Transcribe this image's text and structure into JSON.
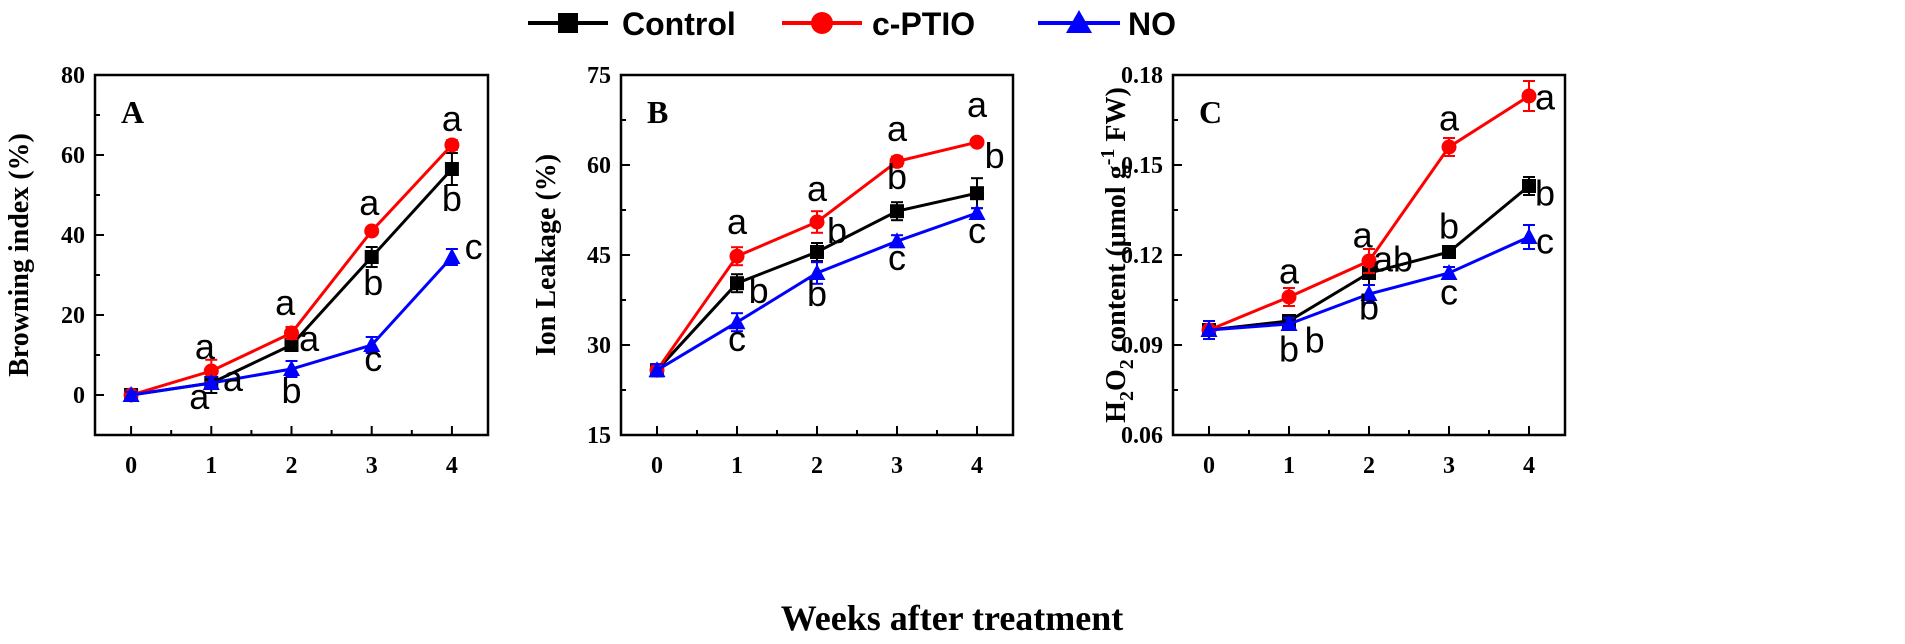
{
  "legend": {
    "control": "Control",
    "cptio": "c-PTIO",
    "no": "NO"
  },
  "x_axis_label": "Weeks after treatment",
  "colors": {
    "control": "#000000",
    "cptio": "#ff0000",
    "no": "#0000ff"
  },
  "chart_data": [
    {
      "type": "line",
      "panel": "A",
      "ylabel": "Browning index (%)",
      "x": [
        0,
        1,
        2,
        3,
        4
      ],
      "xticks": [
        "0",
        "1",
        "2",
        "3",
        "4"
      ],
      "xlim": [
        -0.45,
        4.45
      ],
      "ylim": [
        -10,
        80
      ],
      "yticks": [
        0,
        20,
        40,
        60,
        80
      ],
      "ytick_labels": [
        "0",
        "20",
        "40",
        "60",
        "80"
      ],
      "series": [
        {
          "name": "Control",
          "key": "control",
          "marker": "square",
          "values": [
            0,
            3,
            12.5,
            34.5,
            56.5
          ],
          "err": [
            0.8,
            2.5,
            1.0,
            2.5,
            4.0
          ]
        },
        {
          "name": "c-PTIO",
          "key": "cptio",
          "marker": "circle",
          "values": [
            0,
            6,
            15.5,
            41,
            62.5
          ],
          "err": [
            0.8,
            2.8,
            1.5,
            0.8,
            1.2
          ]
        },
        {
          "name": "NO",
          "key": "no",
          "marker": "triangle",
          "values": [
            0,
            3,
            6.5,
            12.5,
            34.5
          ],
          "err": [
            0.8,
            1.5,
            2.0,
            2.0,
            2.0
          ]
        }
      ],
      "annotations": [
        {
          "text": "a",
          "x": 0.92,
          "y": 9
        },
        {
          "text": "a",
          "x": 0.85,
          "y": -3.5
        },
        {
          "text": "a",
          "x": 1.27,
          "y": 1
        },
        {
          "text": "a",
          "x": 1.92,
          "y": 20
        },
        {
          "text": "a",
          "x": 2.22,
          "y": 11
        },
        {
          "text": "b",
          "x": 2.0,
          "y": -2
        },
        {
          "text": "a",
          "x": 2.97,
          "y": 45
        },
        {
          "text": "b",
          "x": 3.02,
          "y": 25
        },
        {
          "text": "c",
          "x": 3.02,
          "y": 6
        },
        {
          "text": "a",
          "x": 4.0,
          "y": 66
        },
        {
          "text": "b",
          "x": 4.0,
          "y": 46
        },
        {
          "text": "c",
          "x": 4.27,
          "y": 34
        }
      ],
      "legend_loc": "none"
    },
    {
      "type": "line",
      "panel": "B",
      "ylabel": "Ion Leakage (%)",
      "x": [
        0,
        1,
        2,
        3,
        4
      ],
      "xticks": [
        "0",
        "1",
        "2",
        "3",
        "4"
      ],
      "xlim": [
        -0.45,
        4.45
      ],
      "ylim": [
        15,
        75
      ],
      "yticks": [
        15,
        30,
        45,
        60,
        75
      ],
      "ytick_labels": [
        "15",
        "30",
        "45",
        "60",
        "75"
      ],
      "series": [
        {
          "name": "Control",
          "key": "control",
          "marker": "square",
          "values": [
            25.8,
            40.3,
            45.5,
            52.3,
            55.3
          ],
          "err": [
            1.0,
            1.5,
            1.5,
            1.5,
            2.5
          ]
        },
        {
          "name": "c-PTIO",
          "key": "cptio",
          "marker": "circle",
          "values": [
            25.8,
            44.8,
            50.5,
            60.6,
            63.8
          ],
          "err": [
            1.0,
            1.5,
            1.8,
            0.8,
            0.5
          ]
        },
        {
          "name": "NO",
          "key": "no",
          "marker": "triangle",
          "values": [
            25.8,
            33.8,
            42.0,
            47.3,
            52.0
          ],
          "err": [
            1.0,
            1.5,
            1.8,
            1.0,
            0.8
          ]
        }
      ],
      "annotations": [
        {
          "text": "a",
          "x": 1.0,
          "y": 48.5
        },
        {
          "text": "b",
          "x": 1.27,
          "y": 37
        },
        {
          "text": "c",
          "x": 1.0,
          "y": 29
        },
        {
          "text": "a",
          "x": 2.0,
          "y": 54
        },
        {
          "text": "b",
          "x": 2.25,
          "y": 47
        },
        {
          "text": "b",
          "x": 2.0,
          "y": 36.5
        },
        {
          "text": "a",
          "x": 3.0,
          "y": 64
        },
        {
          "text": "b",
          "x": 3.0,
          "y": 56
        },
        {
          "text": "c",
          "x": 3.0,
          "y": 42.5
        },
        {
          "text": "a",
          "x": 4.0,
          "y": 68
        },
        {
          "text": "b",
          "x": 4.22,
          "y": 59.5
        },
        {
          "text": "c",
          "x": 4.0,
          "y": 47
        }
      ],
      "legend_loc": "none"
    },
    {
      "type": "line",
      "panel": "C",
      "ylabel": "H2O2 content (μmol g-1 FW)",
      "x": [
        0,
        1,
        2,
        3,
        4
      ],
      "xticks": [
        "0",
        "1",
        "2",
        "3",
        "4"
      ],
      "xlim": [
        -0.45,
        4.45
      ],
      "ylim": [
        0.06,
        0.18
      ],
      "yticks": [
        0.06,
        0.09,
        0.12,
        0.15,
        0.18
      ],
      "ytick_labels": [
        "0.06",
        "0.09",
        "0.12",
        "0.15",
        "0.18"
      ],
      "series": [
        {
          "name": "Control",
          "key": "control",
          "marker": "square",
          "values": [
            0.095,
            0.098,
            0.114,
            0.121,
            0.143
          ],
          "err": [
            0.003,
            0.002,
            0.004,
            0.002,
            0.003
          ]
        },
        {
          "name": "c-PTIO",
          "key": "cptio",
          "marker": "circle",
          "values": [
            0.095,
            0.106,
            0.118,
            0.156,
            0.173
          ],
          "err": [
            0.003,
            0.003,
            0.004,
            0.003,
            0.005
          ]
        },
        {
          "name": "NO",
          "key": "no",
          "marker": "triangle",
          "values": [
            0.095,
            0.097,
            0.107,
            0.114,
            0.126
          ],
          "err": [
            0.003,
            0.002,
            0.003,
            0.002,
            0.004
          ]
        }
      ],
      "annotations": [
        {
          "text": "a",
          "x": 1.0,
          "y": 0.1105
        },
        {
          "text": "b",
          "x": 1.0,
          "y": 0.0845
        },
        {
          "text": "b",
          "x": 1.32,
          "y": 0.0875
        },
        {
          "text": "a",
          "x": 1.92,
          "y": 0.1225
        },
        {
          "text": "ab",
          "x": 2.3,
          "y": 0.1145
        },
        {
          "text": "b",
          "x": 2.0,
          "y": 0.0985
        },
        {
          "text": "a",
          "x": 3.0,
          "y": 0.1615
        },
        {
          "text": "b",
          "x": 3.0,
          "y": 0.1255
        },
        {
          "text": "c",
          "x": 3.0,
          "y": 0.1035
        },
        {
          "text": "a",
          "x": 4.2,
          "y": 0.1685
        },
        {
          "text": "b",
          "x": 4.2,
          "y": 0.1365
        },
        {
          "text": "c",
          "x": 4.2,
          "y": 0.1205
        }
      ],
      "legend_loc": "none"
    }
  ]
}
